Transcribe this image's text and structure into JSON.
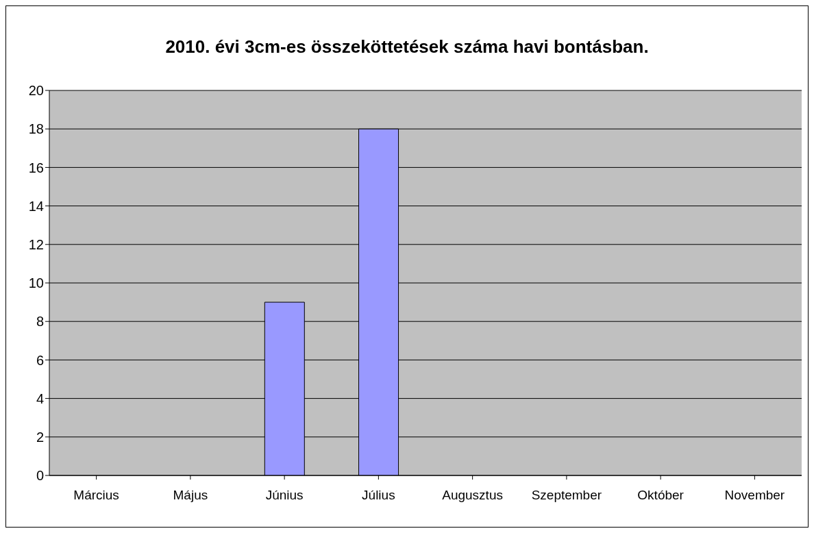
{
  "chart_data": {
    "type": "bar",
    "title": "2010. évi 3cm-es összeköttetések száma havi bontásban.",
    "categories": [
      "Március",
      "Május",
      "Június",
      "Július",
      "Augusztus",
      "Szeptember",
      "Október",
      "November"
    ],
    "values": [
      0,
      0,
      9,
      18,
      0,
      0,
      0,
      0
    ],
    "color": "#9999ff",
    "ylim": [
      0,
      20
    ],
    "yticks": [
      0,
      2,
      4,
      6,
      8,
      10,
      12,
      14,
      16,
      18,
      20
    ],
    "grid": "y"
  }
}
